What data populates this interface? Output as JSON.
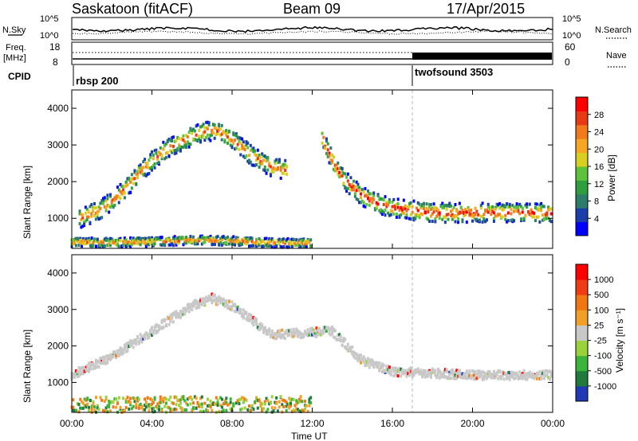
{
  "header": {
    "station": "Saskatoon (fitACF)",
    "beam": "Beam 09",
    "date": "17/Apr/2015"
  },
  "noise_panel": {
    "left_label": "N.Sky",
    "right_label": "N.Search",
    "left_ticks": [
      "10^5",
      "10^0"
    ],
    "right_ticks": [
      "10^5",
      "10^0"
    ]
  },
  "freq_panel": {
    "left_label_1": "Freq.",
    "left_label_2": "[MHz]",
    "right_label": "Nave",
    "left_ticks": [
      "18",
      "8"
    ],
    "right_ticks": [
      "60",
      "0"
    ]
  },
  "cpid": {
    "label": "CPID",
    "segments": [
      {
        "name": "rbsp 200",
        "start_h": 0
      },
      {
        "name": "twofsound 3503",
        "start_h": 17
      }
    ]
  },
  "time_axis": {
    "title": "Time UT",
    "tick_labels": [
      "00:00",
      "04:00",
      "08:00",
      "12:00",
      "16:00",
      "20:00",
      "00:00"
    ]
  },
  "chart_data": [
    {
      "type": "heatmap",
      "title": "",
      "ylabel": "Slant Range [km]",
      "xlabel": "",
      "xlim": [
        0,
        24
      ],
      "ylim": [
        180,
        4500
      ],
      "y_ticks": [
        "1000",
        "2000",
        "3000",
        "4000"
      ],
      "colorbar_label": "Power [dB]",
      "colorbar_ticks": [
        "28",
        "24",
        "20",
        "16",
        "12",
        "8",
        "4"
      ],
      "colorbar_range": [
        0,
        30
      ],
      "colors": [
        "#0000ff",
        "#1a3fa8",
        "#2e7d6b",
        "#2e9e3e",
        "#5cc23c",
        "#d8d020",
        "#f5a623",
        "#f07a1c",
        "#e83a14",
        "#ff0000"
      ],
      "scatter_bands": [
        {
          "name": "near-range ground",
          "points": [
            [
              0,
              350
            ],
            [
              2,
              330
            ],
            [
              4,
              360
            ],
            [
              6,
              400
            ],
            [
              8,
              380
            ],
            [
              10,
              330
            ],
            [
              12,
              320
            ]
          ]
        },
        {
          "name": "ionospheric arc",
          "points": [
            [
              0.4,
              1000
            ],
            [
              1.5,
              1250
            ],
            [
              2.5,
              1700
            ],
            [
              3.5,
              2300
            ],
            [
              4.5,
              2800
            ],
            [
              5.5,
              3100
            ],
            [
              6.5,
              3350
            ],
            [
              7.2,
              3400
            ],
            [
              8,
              3150
            ],
            [
              9,
              2700
            ],
            [
              10,
              2400
            ],
            [
              10.8,
              2300
            ]
          ]
        },
        {
          "name": "post-noon band",
          "points": [
            [
              12.5,
              3200
            ],
            [
              13,
              2600
            ],
            [
              13.5,
              2100
            ],
            [
              14.5,
              1600
            ],
            [
              15.5,
              1350
            ],
            [
              16.5,
              1250
            ],
            [
              18,
              1150
            ],
            [
              20,
              1150
            ],
            [
              22,
              1150
            ],
            [
              24,
              1150
            ]
          ]
        }
      ]
    },
    {
      "type": "heatmap",
      "title": "",
      "ylabel": "Slant Range [km]",
      "xlabel": "Time UT",
      "xlim": [
        0,
        24
      ],
      "ylim": [
        180,
        4500
      ],
      "y_ticks": [
        "1000",
        "2000",
        "3000",
        "4000"
      ],
      "colorbar_label": "Velocity [m s⁻¹]",
      "colorbar_ticks": [
        "1000",
        "500",
        "100",
        "25",
        "-25",
        "-100",
        "-500",
        "-1000"
      ],
      "colorbar_range": [
        -1000,
        1000
      ],
      "colors": [
        "#1f3ab4",
        "#1f7a3c",
        "#3cb43c",
        "#9ad23c",
        "#c8c8c8",
        "#f0a028",
        "#f07814",
        "#f03c14",
        "#ff0000"
      ],
      "scatter_bands": [
        {
          "name": "ground scatter (grey)",
          "points": [
            [
              0,
              1200
            ],
            [
              2,
              1700
            ],
            [
              4,
              2400
            ],
            [
              6,
              3100
            ],
            [
              7,
              3300
            ],
            [
              8,
              3100
            ],
            [
              10,
              2300
            ],
            [
              13,
              2400
            ],
            [
              14.5,
              1600
            ],
            [
              16,
              1300
            ],
            [
              20,
              1200
            ],
            [
              24,
              1200
            ]
          ]
        },
        {
          "name": "near-range positive",
          "points": [
            [
              0,
              300
            ],
            [
              3,
              300
            ],
            [
              5,
              320
            ],
            [
              8,
              300
            ],
            [
              12,
              320
            ]
          ]
        }
      ]
    }
  ]
}
